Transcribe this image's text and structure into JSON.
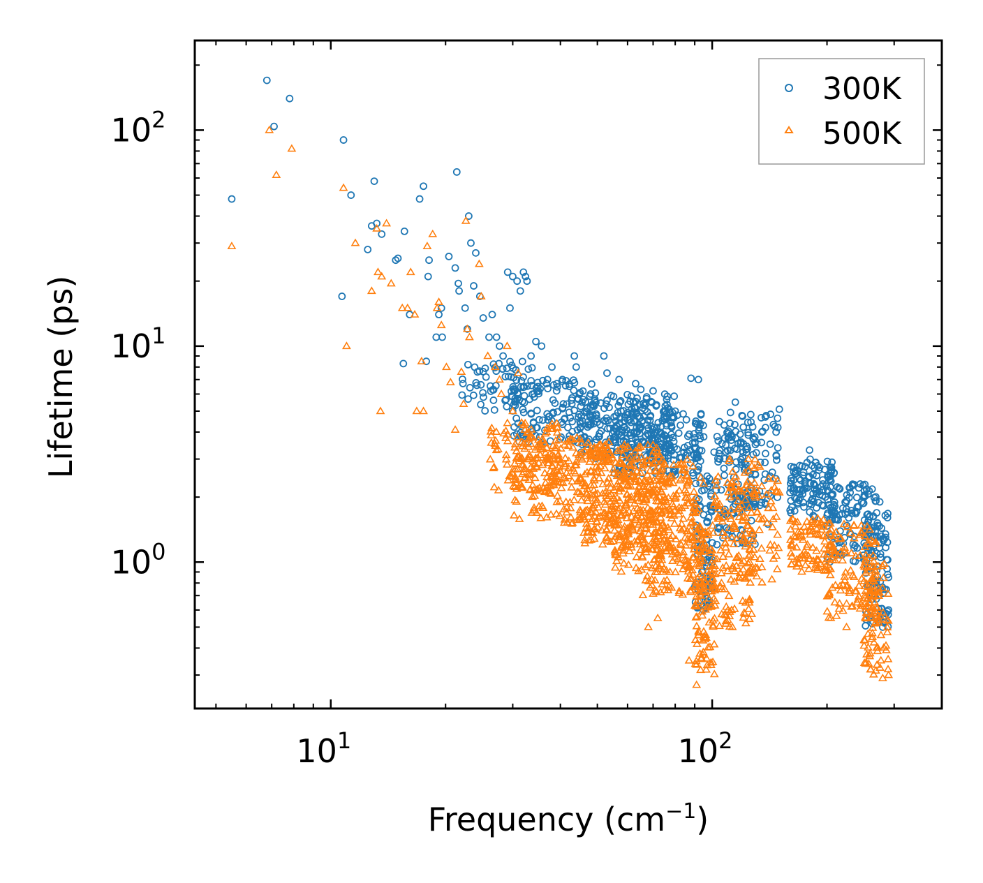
{
  "chart_data": {
    "type": "scatter",
    "title": "",
    "xlabel_main": "Frequency (cm",
    "xlabel_sup": "−1",
    "xlabel_close": ")",
    "ylabel": "Lifetime (ps)",
    "xscale": "log",
    "yscale": "log",
    "xlim": [
      4.4,
      400
    ],
    "ylim": [
      0.21,
      260
    ],
    "x_ticks": [
      {
        "value": 10,
        "base": "10",
        "exp": "1"
      },
      {
        "value": 100,
        "base": "10",
        "exp": "2"
      }
    ],
    "y_ticks": [
      {
        "value": 1,
        "base": "10",
        "exp": "0"
      },
      {
        "value": 10,
        "base": "10",
        "exp": "1"
      },
      {
        "value": 100,
        "base": "10",
        "exp": "2"
      }
    ],
    "legend": {
      "position": "top-right"
    },
    "series": [
      {
        "name": "300K",
        "marker": "circle",
        "color": "#1f77b4",
        "points": [
          [
            5.5,
            48
          ],
          [
            6.8,
            170
          ],
          [
            7.1,
            104
          ],
          [
            7.8,
            140
          ],
          [
            10.8,
            90
          ],
          [
            11.3,
            50
          ],
          [
            10.7,
            17
          ],
          [
            12.5,
            28
          ],
          [
            13,
            58
          ],
          [
            12.8,
            36
          ],
          [
            13.2,
            37
          ],
          [
            13.6,
            33
          ],
          [
            14.8,
            25
          ],
          [
            15,
            25.5
          ],
          [
            15.6,
            34
          ],
          [
            15.5,
            8.3
          ],
          [
            16.1,
            14
          ],
          [
            17.1,
            48
          ],
          [
            17.5,
            55
          ],
          [
            17.8,
            8.5
          ],
          [
            18,
            21
          ],
          [
            18.1,
            25
          ],
          [
            18.9,
            11
          ],
          [
            19.5,
            15
          ],
          [
            19.2,
            14
          ],
          [
            19.6,
            11
          ],
          [
            20.4,
            26
          ],
          [
            21.2,
            23
          ],
          [
            21.4,
            64
          ],
          [
            21.6,
            19.5
          ],
          [
            21.7,
            18
          ],
          [
            22.5,
            15
          ],
          [
            22.8,
            12
          ],
          [
            23,
            40
          ],
          [
            23.3,
            30
          ],
          [
            23.7,
            19
          ],
          [
            24,
            27
          ],
          [
            24.6,
            17
          ],
          [
            25.1,
            13.5
          ],
          [
            26,
            11
          ],
          [
            26.5,
            14
          ],
          [
            27.2,
            11
          ],
          [
            27.7,
            10
          ],
          [
            28.3,
            9
          ],
          [
            29.1,
            22
          ],
          [
            29.5,
            15
          ],
          [
            30,
            21
          ],
          [
            30.8,
            20
          ],
          [
            31.4,
            18
          ],
          [
            32,
            22
          ],
          [
            32.4,
            21
          ],
          [
            32.7,
            20
          ],
          [
            33.5,
            9
          ],
          [
            34.5,
            10.5
          ],
          [
            35.7,
            10
          ],
          [
            37,
            7
          ],
          [
            38,
            8
          ],
          [
            40.5,
            7
          ],
          [
            43.5,
            9
          ],
          [
            44,
            8
          ],
          [
            48,
            6
          ],
          [
            52,
            9
          ],
          [
            53,
            7.5
          ],
          [
            57,
            7
          ],
          [
            63,
            6.7
          ],
          [
            65,
            6.3
          ],
          [
            70,
            6.2
          ],
          [
            80,
            5
          ],
          [
            88,
            7.1
          ],
          [
            92,
            7
          ],
          [
            95,
            3.8
          ],
          [
            97,
            2.5
          ],
          [
            115,
            5.5
          ],
          [
            135,
            4
          ],
          [
            150,
            5.1
          ],
          [
            180,
            3.3
          ],
          [
            205,
            2.6
          ],
          [
            230,
            2.1
          ],
          [
            250,
            2
          ],
          [
            275,
            1.9
          ],
          [
            285,
            1.3
          ],
          [
            290,
            0.85
          ],
          [
            290,
            0.6
          ],
          [
            280,
            0.5
          ],
          [
            95,
            1.2
          ],
          [
            97,
            0.8
          ],
          [
            100,
            1.8
          ],
          [
            120,
            1.4
          ],
          [
            140,
            1.5
          ],
          [
            160,
            2.1
          ],
          [
            175,
            2.3
          ],
          [
            195,
            2.4
          ],
          [
            215,
            2.2
          ],
          [
            240,
            1.8
          ],
          [
            262,
            1.4
          ]
        ],
        "bands": [
          [
            22,
            35,
            5,
            8.5,
            70
          ],
          [
            30,
            50,
            3.5,
            7,
            130
          ],
          [
            45,
            80,
            3,
            6,
            200
          ],
          [
            55,
            95,
            2.5,
            5,
            200
          ],
          [
            90,
            100,
            0.6,
            2.5,
            90
          ],
          [
            100,
            130,
            1.2,
            4.5,
            110
          ],
          [
            110,
            150,
            1.8,
            5,
            80
          ],
          [
            160,
            210,
            1.6,
            3,
            110
          ],
          [
            200,
            270,
            1,
            2.3,
            120
          ],
          [
            250,
            290,
            0.5,
            1.7,
            90
          ]
        ]
      },
      {
        "name": "500K",
        "marker": "triangle",
        "color": "#ff7f0e",
        "points": [
          [
            5.5,
            29
          ],
          [
            6.9,
            100
          ],
          [
            7.2,
            62
          ],
          [
            7.9,
            82
          ],
          [
            10.8,
            54
          ],
          [
            11,
            10
          ],
          [
            11.6,
            30
          ],
          [
            13.2,
            35
          ],
          [
            13.3,
            22
          ],
          [
            13.6,
            21
          ],
          [
            12.8,
            18
          ],
          [
            14,
            37
          ],
          [
            14.4,
            19.5
          ],
          [
            15.4,
            15
          ],
          [
            15.9,
            15
          ],
          [
            16.2,
            22
          ],
          [
            16.6,
            14
          ],
          [
            16.8,
            5
          ],
          [
            17.3,
            8.5
          ],
          [
            17.9,
            29
          ],
          [
            18.5,
            33
          ],
          [
            19,
            15
          ],
          [
            19.2,
            16
          ],
          [
            19.5,
            12.5
          ],
          [
            20.1,
            8
          ],
          [
            20.6,
            6.8
          ],
          [
            21.2,
            4.1
          ],
          [
            22,
            7.6
          ],
          [
            22.3,
            5.4
          ],
          [
            22.6,
            38
          ],
          [
            22.8,
            12
          ],
          [
            23.1,
            11
          ],
          [
            24.5,
            24
          ],
          [
            24.8,
            17
          ],
          [
            25.8,
            9
          ],
          [
            27,
            8
          ],
          [
            27.7,
            7
          ],
          [
            28,
            6
          ],
          [
            29,
            10
          ],
          [
            30,
            5
          ],
          [
            31,
            7.5
          ],
          [
            33,
            4
          ],
          [
            37,
            3
          ],
          [
            42,
            2.5
          ],
          [
            47,
            2.6
          ],
          [
            60,
            1.4
          ],
          [
            68,
            0.5
          ],
          [
            72,
            0.55
          ],
          [
            87,
            0.35
          ],
          [
            91,
            0.27
          ],
          [
            95,
            0.45
          ],
          [
            110,
            0.6
          ],
          [
            113,
            0.5
          ],
          [
            125,
            0.65
          ],
          [
            150,
            2.1
          ],
          [
            170,
            1.3
          ],
          [
            180,
            1.4
          ],
          [
            205,
            1.2
          ],
          [
            225,
            0.5
          ],
          [
            260,
            0.55
          ],
          [
            280,
            0.29
          ],
          [
            290,
            0.3
          ],
          [
            13.5,
            5
          ],
          [
            17.5,
            5
          ]
        ],
        "bands": [
          [
            26,
            40,
            2,
            4.5,
            120
          ],
          [
            30,
            55,
            1.5,
            3.8,
            200
          ],
          [
            45,
            75,
            1.2,
            3.5,
            260
          ],
          [
            55,
            90,
            0.9,
            3,
            260
          ],
          [
            65,
            95,
            0.7,
            2.5,
            150
          ],
          [
            90,
            102,
            0.3,
            1.5,
            110
          ],
          [
            100,
            130,
            0.5,
            2.5,
            130
          ],
          [
            110,
            150,
            0.8,
            3,
            90
          ],
          [
            160,
            210,
            0.9,
            1.6,
            100
          ],
          [
            200,
            270,
            0.55,
            1.5,
            110
          ],
          [
            250,
            290,
            0.3,
            1,
            90
          ]
        ]
      }
    ]
  }
}
